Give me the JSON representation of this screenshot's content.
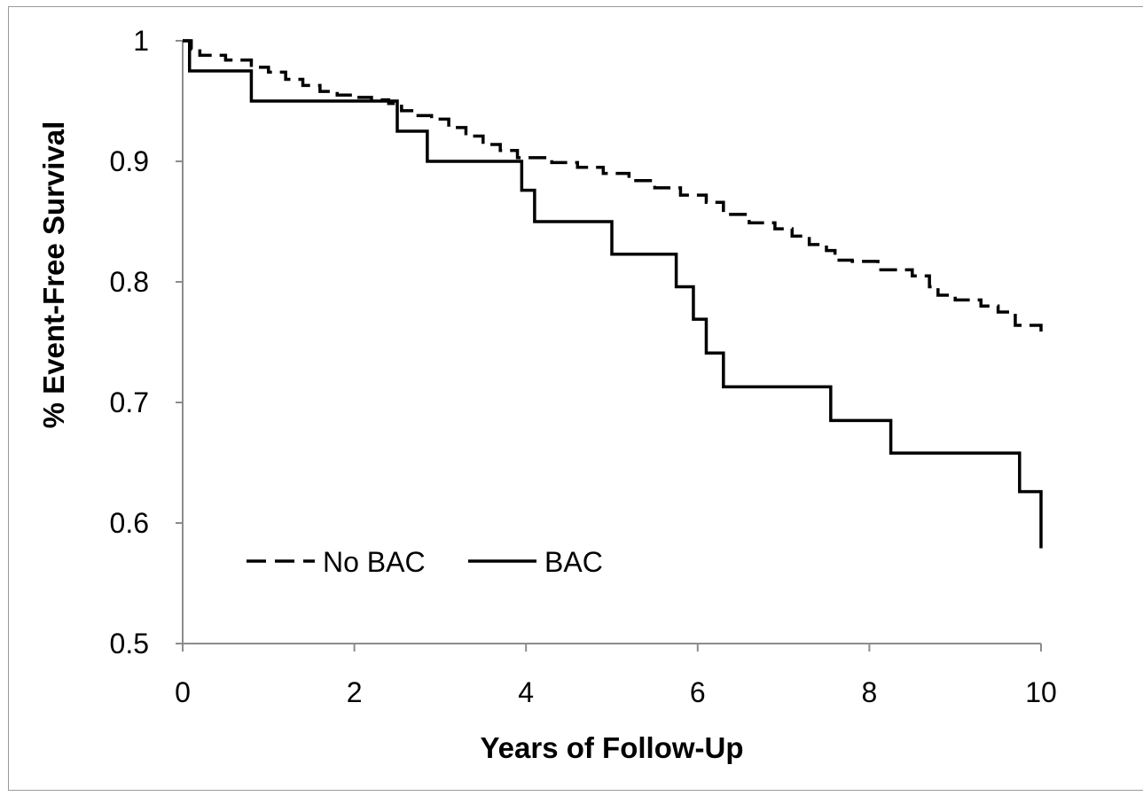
{
  "chart_data": {
    "type": "line",
    "step": true,
    "title": "",
    "xlabel": "Years of Follow-Up",
    "ylabel": "% Event-Free Survival",
    "xlim": [
      0,
      10
    ],
    "ylim": [
      0.5,
      1
    ],
    "x_ticks": [
      0,
      2,
      4,
      6,
      8,
      10
    ],
    "y_ticks": [
      0.5,
      0.6,
      0.7,
      0.8,
      0.9,
      1
    ],
    "x_tick_labels": [
      "0",
      "2",
      "4",
      "6",
      "8",
      "10"
    ],
    "y_tick_labels": [
      "0.5",
      "0.6",
      "0.7",
      "0.8",
      "0.9",
      "1"
    ],
    "grid": false,
    "legend_position": "bottom-left",
    "series": [
      {
        "name": "No BAC",
        "style": "dashed",
        "color": "#000000",
        "x": [
          0,
          0.1,
          0.2,
          0.5,
          0.8,
          1.0,
          1.2,
          1.4,
          1.6,
          1.8,
          2.0,
          2.2,
          2.4,
          2.55,
          2.7,
          2.9,
          3.1,
          3.3,
          3.5,
          3.7,
          3.9,
          4.3,
          4.6,
          4.9,
          5.2,
          5.5,
          5.8,
          6.1,
          6.3,
          6.6,
          6.9,
          7.1,
          7.3,
          7.5,
          7.6,
          7.8,
          8.1,
          8.5,
          8.7,
          8.8,
          9.0,
          9.3,
          9.5,
          9.7,
          10.0
        ],
        "y": [
          1.0,
          0.993,
          0.988,
          0.984,
          0.978,
          0.974,
          0.968,
          0.963,
          0.958,
          0.955,
          0.953,
          0.951,
          0.948,
          0.942,
          0.938,
          0.935,
          0.928,
          0.921,
          0.914,
          0.909,
          0.903,
          0.899,
          0.895,
          0.89,
          0.884,
          0.878,
          0.872,
          0.866,
          0.856,
          0.849,
          0.844,
          0.838,
          0.831,
          0.826,
          0.818,
          0.817,
          0.81,
          0.805,
          0.796,
          0.789,
          0.785,
          0.78,
          0.775,
          0.764,
          0.754
        ]
      },
      {
        "name": "BAC",
        "style": "solid",
        "color": "#000000",
        "x": [
          0,
          0.08,
          0.8,
          2.4,
          2.5,
          2.85,
          3.95,
          4.1,
          5.0,
          5.75,
          5.95,
          6.1,
          6.3,
          7.55,
          8.25,
          9.75,
          10.0
        ],
        "y": [
          1.0,
          0.975,
          0.95,
          0.95,
          0.925,
          0.9,
          0.876,
          0.85,
          0.823,
          0.796,
          0.769,
          0.741,
          0.713,
          0.685,
          0.658,
          0.626,
          0.579
        ]
      }
    ]
  }
}
